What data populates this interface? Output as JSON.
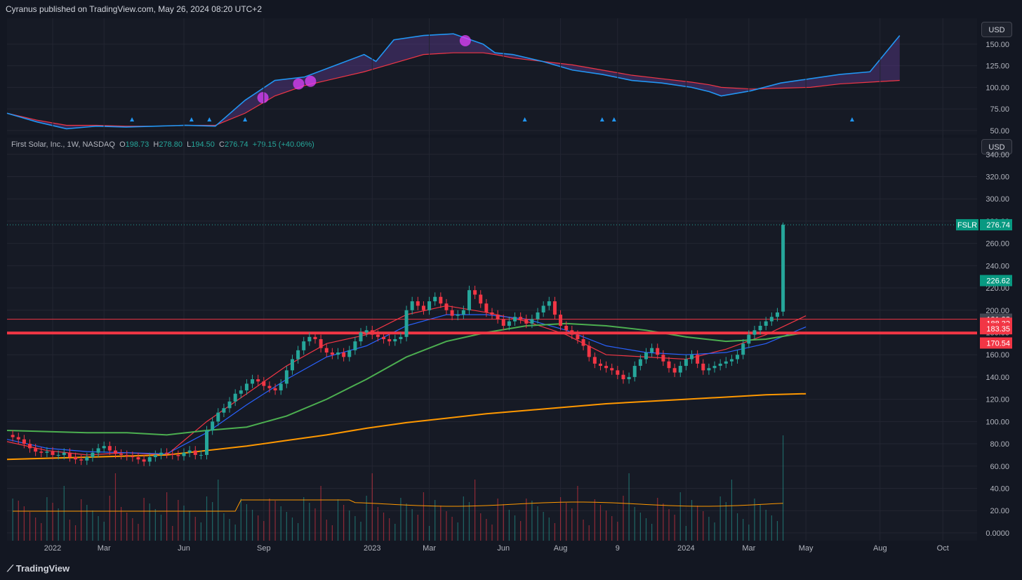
{
  "header": {
    "publisher": "Cyranus published on TradingView.com, May 26, 2024 08:20 UTC+2"
  },
  "legend": {
    "symbol": "First Solar, Inc., 1W, NASDAQ",
    "o_label": "O",
    "o": "198.73",
    "h_label": "H",
    "h": "278.80",
    "l_label": "L",
    "l": "194.50",
    "c_label": "C",
    "c": "276.74",
    "change": "+79.15 (+40.06%)"
  },
  "buttons": {
    "usd_top": "USD",
    "usd_main": "USD"
  },
  "footer": {
    "brand": "TradingView"
  },
  "colors": {
    "bg": "#131722",
    "pane": "#161a25",
    "up": "#26a69a",
    "down": "#f23645",
    "ema_fast": "#f23645",
    "ema_mid": "#2962ff",
    "sma_green": "#4caf50",
    "sma_orange": "#ff9800",
    "osc_fast": "#2196f3",
    "osc_slow": "#f06292",
    "osc_magenta": "#e040fb"
  },
  "chart_data": [
    {
      "type": "line",
      "pane": "indicator",
      "yticks": [
        "150.00",
        "125.00",
        "100.00",
        "75.00",
        "50.00"
      ],
      "ylim": [
        45,
        180
      ],
      "x": [
        0,
        5,
        10,
        15,
        20,
        25,
        30,
        35,
        40,
        45,
        50,
        55,
        60,
        62,
        65,
        70,
        75,
        80,
        82,
        85,
        90,
        95,
        100,
        105,
        110,
        115,
        118,
        120,
        125,
        130,
        135,
        140,
        145,
        150
      ],
      "series": [
        {
          "role": "fast",
          "values": [
            70,
            60,
            52,
            55,
            54,
            55,
            56,
            55,
            85,
            108,
            112,
            125,
            138,
            130,
            155,
            160,
            162,
            150,
            140,
            138,
            130,
            120,
            115,
            108,
            105,
            100,
            95,
            90,
            96,
            105,
            110,
            115,
            118,
            160
          ]
        },
        {
          "role": "slow",
          "values": [
            70,
            62,
            56,
            56,
            55,
            55,
            56,
            56,
            70,
            90,
            102,
            110,
            118,
            122,
            128,
            138,
            140,
            140,
            138,
            134,
            130,
            126,
            120,
            114,
            110,
            106,
            103,
            100,
            98,
            99,
            100,
            104,
            106,
            108
          ]
        }
      ],
      "markers_up_x": [
        21,
        31,
        34,
        40,
        87,
        100,
        102,
        142
      ],
      "circles": [
        {
          "x": 43,
          "y": 88
        },
        {
          "x": 49,
          "y": 104
        },
        {
          "x": 51,
          "y": 107
        },
        {
          "x": 77,
          "y": 154
        }
      ]
    },
    {
      "type": "candlestick",
      "pane": "price",
      "yticks": [
        "340.00",
        "320.00",
        "300.00",
        "280.00",
        "260.00",
        "240.00",
        "220.00",
        "200.00",
        "180.00",
        "160.00",
        "140.00",
        "120.00",
        "100.00",
        "80.00",
        "60.00",
        "40.00",
        "20.00",
        "0.0000"
      ],
      "ylim": [
        -7,
        355
      ],
      "xticks": [
        "2022",
        "Mar",
        "Jun",
        "Sep",
        "2023",
        "Mar",
        "Jun",
        "Aug",
        "9",
        "2024",
        "Mar",
        "May",
        "Aug",
        "Oct"
      ],
      "xtick_week": [
        8,
        17,
        31,
        45,
        64,
        74,
        87,
        97,
        107,
        119,
        130,
        140,
        153,
        164
      ],
      "closes": [
        86,
        84,
        80,
        76,
        73,
        72,
        73,
        70,
        70,
        72,
        68,
        66,
        65,
        68,
        72,
        76,
        78,
        74,
        71,
        70,
        69,
        68,
        66,
        64,
        68,
        70,
        72,
        71,
        70,
        69,
        72,
        74,
        70,
        70,
        92,
        100,
        108,
        112,
        118,
        125,
        128,
        134,
        138,
        136,
        132,
        130,
        128,
        134,
        146,
        156,
        164,
        172,
        176,
        174,
        166,
        162,
        160,
        162,
        158,
        164,
        172,
        180,
        182,
        178,
        176,
        174,
        172,
        174,
        176,
        200,
        208,
        204,
        200,
        208,
        212,
        206,
        200,
        195,
        196,
        200,
        218,
        214,
        206,
        198,
        196,
        192,
        186,
        190,
        194,
        192,
        188,
        192,
        198,
        204,
        208,
        196,
        186,
        182,
        178,
        174,
        168,
        158,
        152,
        150,
        148,
        146,
        142,
        138,
        140,
        150,
        156,
        162,
        166,
        160,
        154,
        148,
        144,
        150,
        156,
        160,
        152,
        146,
        148,
        150,
        152,
        154,
        156,
        160,
        170,
        178,
        182,
        186,
        190,
        194,
        198,
        276.74
      ],
      "opens_last": 198.73,
      "series": [
        {
          "name": "",
          "role": "ema_fast",
          "values": [
            82,
            74,
            70,
            72,
            70,
            100,
            125,
            150,
            170,
            178,
            196,
            204,
            198,
            190,
            178,
            160,
            158,
            156,
            165,
            178,
            195
          ]
        },
        {
          "name": "",
          "role": "ema_mid",
          "values": [
            84,
            76,
            73,
            72,
            71,
            90,
            115,
            138,
            158,
            168,
            186,
            196,
            196,
            192,
            182,
            168,
            162,
            160,
            162,
            170,
            185
          ]
        },
        {
          "name": "",
          "role": "sma_green",
          "values": [
            92,
            91,
            90,
            90,
            88,
            92,
            95,
            105,
            120,
            138,
            158,
            172,
            180,
            186,
            188,
            186,
            182,
            176,
            172,
            174,
            180
          ]
        },
        {
          "name": "",
          "role": "sma_orange",
          "values": [
            66,
            67,
            68,
            69,
            70,
            74,
            78,
            83,
            88,
            94,
            99,
            103,
            107,
            110,
            113,
            116,
            118,
            120,
            122,
            124,
            125
          ]
        }
      ],
      "series_x_step": 7,
      "hlines": [
        {
          "value": 191.93,
          "width": 1
        },
        {
          "value": 179.5,
          "width": 4
        }
      ],
      "price_labels": [
        {
          "text": "FSLR",
          "value": "276.74",
          "color": "#089981"
        },
        {
          "text": "",
          "value": "226.62",
          "color": "#089981"
        },
        {
          "text": "",
          "value": "191.93",
          "color": "#434651"
        },
        {
          "text": "",
          "value": "188.32",
          "color": "#f23645"
        },
        {
          "text": "",
          "value": "183.35",
          "color": "#f23645"
        },
        {
          "text": "",
          "value": "170.54",
          "color": "#f23645"
        }
      ],
      "volume_scale_max": 90,
      "volume_last": 90
    }
  ]
}
